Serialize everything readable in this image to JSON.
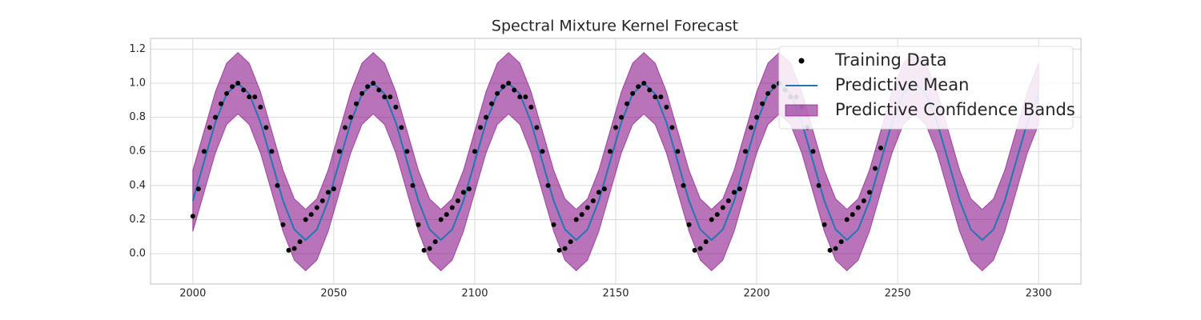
{
  "chart_data": {
    "type": "line",
    "title": "Spectral Mixture Kernel Forecast",
    "xlim": [
      1985,
      2315
    ],
    "ylim": [
      -0.178,
      1.263
    ],
    "xticks": [
      2000,
      2050,
      2100,
      2150,
      2200,
      2250,
      2300
    ],
    "yticks": [
      {
        "value": 0.0,
        "label": "0.0"
      },
      0.2,
      0.4,
      0.6,
      0.8,
      {
        "value": 1.0,
        "label": "1.0"
      },
      1.2
    ],
    "grid": true,
    "legend": "upper right",
    "series": [
      {
        "name": "Training Data",
        "type": "scatter",
        "color": "#000000",
        "x": [
          2000,
          2002,
          2004,
          2006,
          2008,
          2010,
          2012,
          2014,
          2016,
          2018,
          2020,
          2022,
          2024,
          2026,
          2028,
          2030,
          2032,
          2034,
          2036,
          2038,
          2040,
          2042,
          2044,
          2046,
          2048,
          2050,
          2052,
          2054,
          2056,
          2058,
          2060,
          2062,
          2064,
          2066,
          2068,
          2070,
          2072,
          2074,
          2076,
          2078,
          2080,
          2082,
          2084,
          2086,
          2088,
          2090,
          2092,
          2094,
          2096,
          2098,
          2100,
          2102,
          2104,
          2106,
          2108,
          2110,
          2112,
          2114,
          2116,
          2118,
          2120,
          2122,
          2124,
          2126,
          2128,
          2130,
          2132,
          2134,
          2136,
          2138,
          2140,
          2142,
          2144,
          2146,
          2148,
          2150,
          2152,
          2154,
          2156,
          2158,
          2160,
          2162,
          2164,
          2166,
          2168,
          2170,
          2172,
          2174,
          2176,
          2178,
          2180,
          2182,
          2184,
          2186,
          2188,
          2190,
          2192,
          2194,
          2196,
          2198,
          2200,
          2202,
          2204,
          2206,
          2208,
          2210,
          2212,
          2214,
          2216,
          2218,
          2220,
          2222,
          2224,
          2226,
          2228,
          2230,
          2232,
          2234,
          2236,
          2238,
          2240,
          2242,
          2244
        ],
        "values": [
          0.22,
          0.38,
          0.6,
          0.74,
          0.8,
          0.88,
          0.94,
          0.98,
          1.0,
          0.96,
          0.92,
          0.92,
          0.86,
          0.74,
          0.6,
          0.4,
          0.17,
          0.02,
          0.03,
          0.07,
          0.2,
          0.23,
          0.27,
          0.31,
          0.36,
          0.38,
          0.6,
          0.74,
          0.8,
          0.88,
          0.94,
          0.98,
          1.0,
          0.96,
          0.92,
          0.92,
          0.86,
          0.74,
          0.6,
          0.4,
          0.17,
          0.02,
          0.03,
          0.07,
          0.2,
          0.23,
          0.27,
          0.31,
          0.36,
          0.38,
          0.6,
          0.74,
          0.8,
          0.88,
          0.94,
          0.98,
          1.0,
          0.96,
          0.92,
          0.92,
          0.86,
          0.74,
          0.6,
          0.4,
          0.17,
          0.02,
          0.03,
          0.07,
          0.2,
          0.23,
          0.27,
          0.31,
          0.36,
          0.38,
          0.6,
          0.74,
          0.8,
          0.88,
          0.94,
          0.98,
          1.0,
          0.96,
          0.92,
          0.92,
          0.86,
          0.74,
          0.6,
          0.4,
          0.17,
          0.02,
          0.03,
          0.07,
          0.2,
          0.23,
          0.27,
          0.31,
          0.36,
          0.38,
          0.6,
          0.74,
          0.8,
          0.88,
          0.94,
          0.98,
          1.0,
          0.96,
          0.92,
          0.92,
          0.86,
          0.74,
          0.6,
          0.4,
          0.17,
          0.02,
          0.03,
          0.07,
          0.2,
          0.23,
          0.27,
          0.31,
          0.36,
          0.5,
          0.62
        ]
      },
      {
        "name": "Predictive Mean",
        "type": "line",
        "color": "#1f77b4",
        "x": [
          2000,
          2004,
          2008,
          2012,
          2016,
          2020,
          2024,
          2028,
          2032,
          2036,
          2040,
          2044,
          2048,
          2052,
          2056,
          2060,
          2064,
          2068,
          2072,
          2076,
          2080,
          2084,
          2088,
          2092,
          2096,
          2100,
          2104,
          2108,
          2112,
          2116,
          2120,
          2124,
          2128,
          2132,
          2136,
          2140,
          2144,
          2148,
          2152,
          2156,
          2160,
          2164,
          2168,
          2172,
          2176,
          2180,
          2184,
          2188,
          2192,
          2196,
          2200,
          2204,
          2208,
          2212,
          2216,
          2220,
          2224,
          2228,
          2232,
          2236,
          2240,
          2244,
          2248,
          2252,
          2256,
          2260,
          2264,
          2268,
          2272,
          2276,
          2280,
          2284,
          2288,
          2292,
          2296,
          2300
        ],
        "values": [
          0.31,
          0.54,
          0.77,
          0.938,
          1.0,
          0.938,
          0.77,
          0.54,
          0.31,
          0.142,
          0.08,
          0.142,
          0.31,
          0.54,
          0.77,
          0.938,
          1.0,
          0.938,
          0.77,
          0.54,
          0.31,
          0.142,
          0.08,
          0.142,
          0.31,
          0.54,
          0.77,
          0.938,
          1.0,
          0.938,
          0.77,
          0.54,
          0.31,
          0.142,
          0.08,
          0.142,
          0.31,
          0.54,
          0.77,
          0.938,
          1.0,
          0.938,
          0.77,
          0.54,
          0.31,
          0.142,
          0.08,
          0.142,
          0.31,
          0.54,
          0.77,
          0.938,
          1.0,
          0.938,
          0.77,
          0.54,
          0.31,
          0.142,
          0.08,
          0.142,
          0.31,
          0.54,
          0.77,
          0.938,
          1.0,
          0.938,
          0.77,
          0.54,
          0.31,
          0.142,
          0.08,
          0.142,
          0.31,
          0.54,
          0.77,
          0.938
        ]
      },
      {
        "name": "Predictive Confidence Bands",
        "type": "band",
        "color": "#800080",
        "x": [
          2000,
          2004,
          2008,
          2012,
          2016,
          2020,
          2024,
          2028,
          2032,
          2036,
          2040,
          2044,
          2048,
          2052,
          2056,
          2060,
          2064,
          2068,
          2072,
          2076,
          2080,
          2084,
          2088,
          2092,
          2096,
          2100,
          2104,
          2108,
          2112,
          2116,
          2120,
          2124,
          2128,
          2132,
          2136,
          2140,
          2144,
          2148,
          2152,
          2156,
          2160,
          2164,
          2168,
          2172,
          2176,
          2180,
          2184,
          2188,
          2192,
          2196,
          2200,
          2204,
          2208,
          2212,
          2216,
          2220,
          2224,
          2228,
          2232,
          2236,
          2240,
          2244,
          2248,
          2252,
          2256,
          2260,
          2264,
          2268,
          2272,
          2276,
          2280,
          2284,
          2288,
          2292,
          2296,
          2300
        ],
        "upper": [
          0.49,
          0.72,
          0.95,
          1.118,
          1.18,
          1.118,
          0.95,
          0.72,
          0.49,
          0.322,
          0.26,
          0.322,
          0.49,
          0.72,
          0.95,
          1.118,
          1.18,
          1.118,
          0.95,
          0.72,
          0.49,
          0.322,
          0.26,
          0.322,
          0.49,
          0.72,
          0.95,
          1.118,
          1.18,
          1.118,
          0.95,
          0.72,
          0.49,
          0.322,
          0.26,
          0.322,
          0.49,
          0.72,
          0.95,
          1.118,
          1.18,
          1.118,
          0.95,
          0.72,
          0.49,
          0.322,
          0.26,
          0.322,
          0.49,
          0.72,
          0.95,
          1.118,
          1.18,
          1.118,
          0.95,
          0.72,
          0.49,
          0.322,
          0.26,
          0.322,
          0.49,
          0.72,
          0.95,
          1.118,
          1.18,
          1.118,
          0.95,
          0.72,
          0.49,
          0.322,
          0.26,
          0.322,
          0.49,
          0.72,
          0.95,
          1.118
        ],
        "lower": [
          0.13,
          0.36,
          0.59,
          0.758,
          0.82,
          0.758,
          0.59,
          0.36,
          0.13,
          -0.038,
          -0.1,
          -0.038,
          0.13,
          0.36,
          0.59,
          0.758,
          0.82,
          0.758,
          0.59,
          0.36,
          0.13,
          -0.038,
          -0.1,
          -0.038,
          0.13,
          0.36,
          0.59,
          0.758,
          0.82,
          0.758,
          0.59,
          0.36,
          0.13,
          -0.038,
          -0.1,
          -0.038,
          0.13,
          0.36,
          0.59,
          0.758,
          0.82,
          0.758,
          0.59,
          0.36,
          0.13,
          -0.038,
          -0.1,
          -0.038,
          0.13,
          0.36,
          0.59,
          0.758,
          0.82,
          0.758,
          0.59,
          0.36,
          0.13,
          -0.038,
          -0.1,
          -0.038,
          0.13,
          0.36,
          0.59,
          0.758,
          0.82,
          0.758,
          0.59,
          0.36,
          0.13,
          -0.038,
          -0.1,
          -0.038,
          0.13,
          0.36,
          0.59,
          0.758
        ]
      }
    ]
  }
}
